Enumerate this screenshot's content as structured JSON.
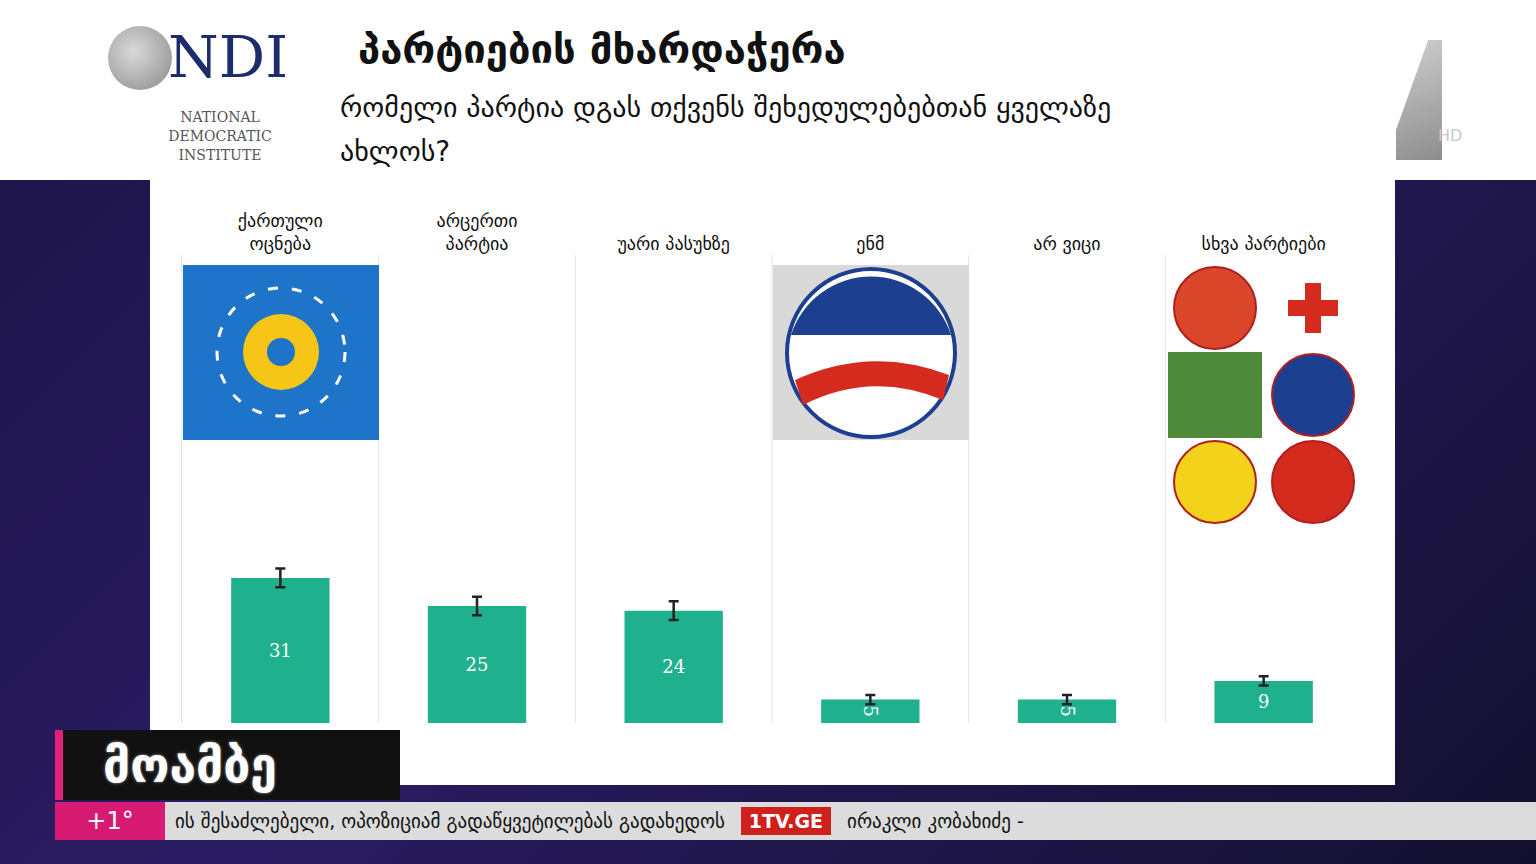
{
  "header": {
    "logo": "NDI",
    "logo_caption": "NATIONAL DEMOCRATIC INSTITUTE",
    "channel": "HD"
  },
  "chart_data": {
    "type": "bar",
    "title": "პარტიების მხარდაჭერა",
    "subtitle": "რომელი პარტია დგას თქვენს შეხედულებებთან ყველაზე ახლოს?",
    "categories": [
      "ქართული ოცნება",
      "არცერთი პარტია",
      "უარი პასუხზე",
      "ენმ",
      "არ ვიცი",
      "სხვა პარტიები"
    ],
    "values": [
      31,
      25,
      24,
      5,
      5,
      9
    ],
    "errors": [
      2,
      2,
      2,
      1,
      1,
      1
    ],
    "color": "#1fb08d",
    "ylim": [
      0,
      100
    ],
    "yticks": [],
    "grid": false,
    "data_labels": true,
    "tick_labels": "x"
  },
  "overlay": {
    "program": "მოამბე",
    "temperature": "+1°",
    "ticker": "ის შესაძლებელი, ოპოზიციამ გადაწყვეტილებას გადახედოს",
    "site": "1TV.GE",
    "ticker_next": "ირაკლი კობახიძე -"
  }
}
